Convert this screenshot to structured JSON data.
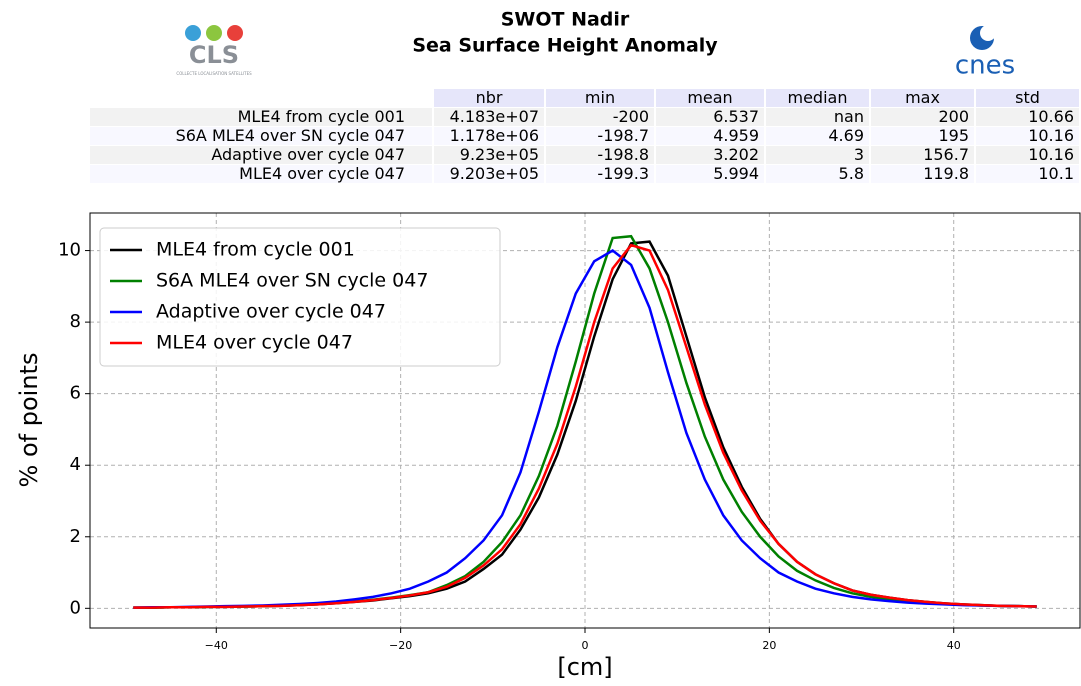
{
  "logos": {
    "left": {
      "text": "CLS",
      "subtext": "COLLECTE LOCALISATION SATELLITES"
    },
    "right": {
      "text": "cnes"
    }
  },
  "table": {
    "columns": [
      "nbr",
      "min",
      "mean",
      "median",
      "max",
      "std"
    ],
    "rows": [
      {
        "label": "MLE4 from cycle 001",
        "cells": [
          "4.183e+07",
          "-200",
          "6.537",
          "nan",
          "200",
          "10.66"
        ]
      },
      {
        "label": "S6A MLE4 over SN cycle 047",
        "cells": [
          "1.178e+06",
          "-198.7",
          "4.959",
          "4.69",
          "195",
          "10.16"
        ]
      },
      {
        "label": "Adaptive over cycle 047",
        "cells": [
          "9.23e+05",
          "-198.8",
          "3.202",
          "3",
          "156.7",
          "10.16"
        ]
      },
      {
        "label": "MLE4 over cycle 047",
        "cells": [
          "9.203e+05",
          "-199.3",
          "5.994",
          "5.8",
          "119.8",
          "10.1"
        ]
      }
    ]
  },
  "chart_data": {
    "type": "line",
    "title": "SWOT Nadir",
    "subtitle": "Sea Surface Height Anomaly",
    "x_label": "[cm]",
    "y_label": "% of points",
    "x": [
      -49,
      -47,
      -45,
      -43,
      -41,
      -39,
      -37,
      -35,
      -33,
      -31,
      -29,
      -27,
      -25,
      -23,
      -21,
      -19,
      -17,
      -15,
      -13,
      -11,
      -9,
      -7,
      -5,
      -3,
      -1,
      1,
      3,
      5,
      7,
      9,
      11,
      13,
      15,
      17,
      19,
      21,
      23,
      25,
      27,
      29,
      31,
      33,
      35,
      37,
      39,
      41,
      43,
      45,
      47,
      49
    ],
    "series": [
      {
        "name": "MLE4 from cycle 001",
        "color": "#000000",
        "values": [
          0.02,
          0.02,
          0.03,
          0.03,
          0.04,
          0.04,
          0.05,
          0.06,
          0.07,
          0.09,
          0.11,
          0.14,
          0.18,
          0.22,
          0.28,
          0.34,
          0.42,
          0.55,
          0.75,
          1.1,
          1.5,
          2.2,
          3.1,
          4.3,
          5.8,
          7.6,
          9.2,
          10.2,
          10.25,
          9.3,
          7.6,
          5.9,
          4.5,
          3.4,
          2.5,
          1.8,
          1.3,
          0.95,
          0.7,
          0.5,
          0.38,
          0.3,
          0.23,
          0.18,
          0.14,
          0.11,
          0.09,
          0.07,
          0.06,
          0.05
        ]
      },
      {
        "name": "S6A MLE4 over SN cycle 047",
        "color": "#008000",
        "values": [
          0.02,
          0.02,
          0.03,
          0.03,
          0.04,
          0.05,
          0.05,
          0.06,
          0.08,
          0.09,
          0.12,
          0.15,
          0.19,
          0.24,
          0.3,
          0.37,
          0.45,
          0.65,
          0.9,
          1.3,
          1.85,
          2.6,
          3.7,
          5.1,
          6.9,
          8.8,
          10.35,
          10.4,
          9.5,
          8.0,
          6.3,
          4.8,
          3.6,
          2.7,
          2.0,
          1.45,
          1.05,
          0.78,
          0.57,
          0.42,
          0.32,
          0.25,
          0.19,
          0.15,
          0.12,
          0.1,
          0.08,
          0.07,
          0.06,
          0.05
        ]
      },
      {
        "name": "Adaptive over cycle 047",
        "color": "#0000ff",
        "values": [
          0.02,
          0.03,
          0.03,
          0.04,
          0.05,
          0.06,
          0.07,
          0.08,
          0.1,
          0.12,
          0.15,
          0.19,
          0.25,
          0.32,
          0.42,
          0.55,
          0.75,
          1.0,
          1.4,
          1.9,
          2.6,
          3.8,
          5.5,
          7.3,
          8.8,
          9.7,
          10.0,
          9.6,
          8.4,
          6.6,
          4.9,
          3.6,
          2.6,
          1.9,
          1.4,
          1.0,
          0.75,
          0.55,
          0.42,
          0.32,
          0.25,
          0.2,
          0.16,
          0.13,
          0.11,
          0.09,
          0.08,
          0.07,
          0.06,
          0.05
        ]
      },
      {
        "name": "MLE4 over cycle 047",
        "color": "#ff0000",
        "values": [
          0.02,
          0.02,
          0.03,
          0.03,
          0.04,
          0.04,
          0.05,
          0.06,
          0.07,
          0.09,
          0.11,
          0.14,
          0.18,
          0.23,
          0.29,
          0.36,
          0.45,
          0.6,
          0.85,
          1.2,
          1.65,
          2.35,
          3.35,
          4.6,
          6.2,
          8.0,
          9.5,
          10.15,
          10.0,
          8.9,
          7.3,
          5.7,
          4.35,
          3.3,
          2.45,
          1.8,
          1.3,
          0.95,
          0.7,
          0.5,
          0.38,
          0.3,
          0.23,
          0.18,
          0.14,
          0.11,
          0.09,
          0.07,
          0.06,
          0.05
        ]
      }
    ],
    "xlim": [
      -53.7,
      53.7
    ],
    "ylim": [
      -0.55,
      11.05
    ],
    "xticks": [
      {
        "value": -40,
        "label": "−40"
      },
      {
        "value": -20,
        "label": "−20"
      },
      0,
      20,
      40
    ],
    "yticks": [
      0,
      2,
      4,
      6,
      8,
      10
    ],
    "grid": true,
    "legend": "upper left"
  }
}
